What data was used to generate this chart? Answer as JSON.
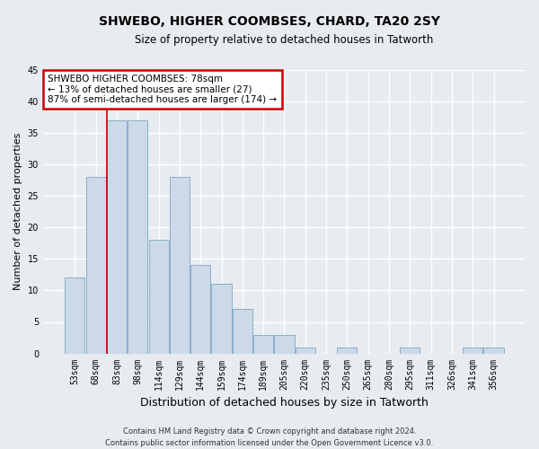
{
  "title": "SHWEBO, HIGHER COOMBSES, CHARD, TA20 2SY",
  "subtitle": "Size of property relative to detached houses in Tatworth",
  "xlabel": "Distribution of detached houses by size in Tatworth",
  "ylabel": "Number of detached properties",
  "bar_labels": [
    "53sqm",
    "68sqm",
    "83sqm",
    "98sqm",
    "114sqm",
    "129sqm",
    "144sqm",
    "159sqm",
    "174sqm",
    "189sqm",
    "205sqm",
    "220sqm",
    "235sqm",
    "250sqm",
    "265sqm",
    "280sqm",
    "295sqm",
    "311sqm",
    "326sqm",
    "341sqm",
    "356sqm"
  ],
  "bar_values": [
    12,
    28,
    37,
    37,
    18,
    28,
    14,
    11,
    7,
    3,
    3,
    1,
    0,
    1,
    0,
    0,
    1,
    0,
    0,
    1,
    1
  ],
  "bar_color": "#ccd9e8",
  "bar_edgecolor": "#8aafc8",
  "vline_x_index": 2,
  "vline_color": "#cc0000",
  "ylim": [
    0,
    45
  ],
  "yticks": [
    0,
    5,
    10,
    15,
    20,
    25,
    30,
    35,
    40,
    45
  ],
  "annotation_title": "SHWEBO HIGHER COOMBSES: 78sqm",
  "annotation_line1": "← 13% of detached houses are smaller (27)",
  "annotation_line2": "87% of semi-detached houses are larger (174) →",
  "annotation_box_facecolor": "#ffffff",
  "annotation_box_edgecolor": "#cc0000",
  "footer_line1": "Contains HM Land Registry data © Crown copyright and database right 2024.",
  "footer_line2": "Contains public sector information licensed under the Open Government Licence v3.0.",
  "fig_facecolor": "#e8ecf0",
  "axes_facecolor": "#e8ecf0",
  "grid_color": "#ffffff",
  "title_fontsize": 10,
  "subtitle_fontsize": 8.5,
  "ylabel_fontsize": 8,
  "xlabel_fontsize": 9,
  "tick_fontsize": 7,
  "annotation_fontsize": 7.5,
  "footer_fontsize": 6
}
